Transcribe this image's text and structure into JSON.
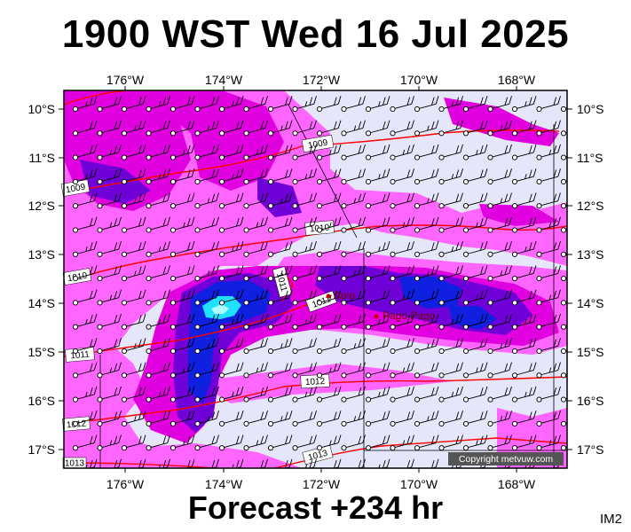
{
  "title": "1900 WST Wed 16 Jul 2025",
  "subtitle": "Forecast +234 hr",
  "image_code": "IM2",
  "copyright": "Copyright metvuw.com",
  "colors": {
    "land_bg": "#e6e6fa",
    "rain_light": "#ff66ff",
    "rain_mid": "#e000e0",
    "rain_heavy": "#7000d8",
    "rain_very_heavy": "#1020e0",
    "rain_extreme": "#20e0ff",
    "isobar": "#ff0000"
  },
  "lon_labels": [
    "176°W",
    "174°W",
    "172°W",
    "170°W",
    "168°W"
  ],
  "lat_labels": [
    "10°S",
    "11°S",
    "12°S",
    "13°S",
    "14°S",
    "15°S",
    "16°S",
    "17°S"
  ],
  "isobar_labels": [
    "1009",
    "1009",
    "1010",
    "1010",
    "1011",
    "1011",
    "1011",
    "1012",
    "1012",
    "1013",
    "1013"
  ],
  "places": [
    {
      "name": "Apia",
      "lon": -171.76,
      "lat": -13.83
    },
    {
      "name": "Pago Pago",
      "lon": -170.7,
      "lat": -14.28
    }
  ],
  "map_extent": {
    "lon_min": -177.25,
    "lon_max": -167.0,
    "lat_min": -17.35,
    "lat_max": -9.65
  }
}
